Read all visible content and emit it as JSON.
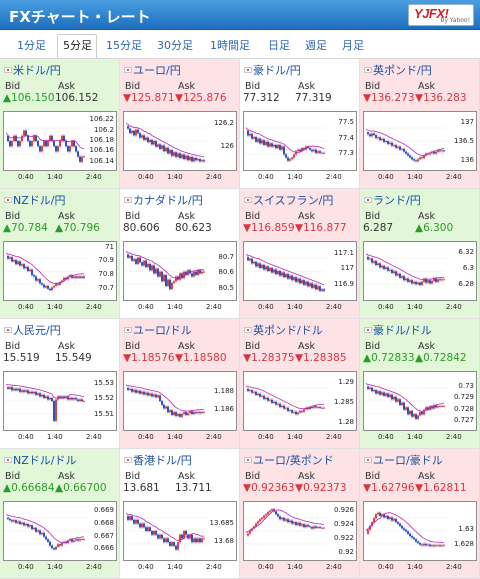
{
  "header": {
    "title": "FXチャート・レート",
    "logo_text": "YJFX!",
    "logo_sub": "by Yahoo!"
  },
  "tabs": [
    "1分足",
    "5分足",
    "15分足",
    "30分足",
    "1時間足",
    "日足",
    "週足",
    "月足"
  ],
  "selected_tab": "5分足",
  "labels": {
    "bid": "Bid",
    "ask": "Ask"
  },
  "x_ticks": [
    "0:40",
    "1:40",
    "2:40"
  ],
  "colors": {
    "up": "#2c9b2c",
    "down": "#d9363e",
    "link": "#1a4fa3",
    "ma": "#c020c0",
    "candle_up": "#d33030",
    "candle_down": "#1a3fb5"
  },
  "pairs": [
    {
      "name": "米ドル/円",
      "dir": "up",
      "bid": "▲106.150",
      "ask": "106.152",
      "y_ticks": [
        "106.22",
        "106.2",
        "106.18",
        "106.16",
        "106.14"
      ],
      "range": [
        106.13,
        106.23
      ],
      "series": [
        106.19,
        106.18,
        106.17,
        106.18,
        106.19,
        106.18,
        106.17,
        106.18,
        106.19,
        106.2,
        106.19,
        106.18,
        106.17,
        106.18,
        106.19,
        106.18,
        106.17,
        106.16,
        106.17,
        106.18,
        106.17,
        106.18,
        106.19,
        106.18,
        106.17,
        106.16,
        106.17,
        106.18,
        106.19,
        106.18,
        106.17,
        106.16,
        106.17,
        106.18,
        106.17,
        106.16,
        106.15,
        106.14,
        106.15,
        106.15
      ]
    },
    {
      "name": "ユーロ/円",
      "dir": "down",
      "bid": "▼125.871",
      "ask": "▼125.876",
      "y_ticks": [
        "126.2",
        "126"
      ],
      "range": [
        125.82,
        126.28
      ],
      "series": [
        126.18,
        126.16,
        126.12,
        126.14,
        126.1,
        126.15,
        126.12,
        126.08,
        126.1,
        126.06,
        126.08,
        126.04,
        126.06,
        126.02,
        126.05,
        126.0,
        126.02,
        125.98,
        126.01,
        125.96,
        125.99,
        125.94,
        125.97,
        125.92,
        125.95,
        125.91,
        125.94,
        125.9,
        125.93,
        125.89,
        125.92,
        125.88,
        125.91,
        125.87,
        125.9,
        125.88,
        125.89,
        125.87,
        125.88,
        125.87
      ]
    },
    {
      "name": "豪ドル/円",
      "dir": "neutral",
      "bid": "77.312",
      "ask": "77.319",
      "y_ticks": [
        "77.5",
        "77.4",
        "77.3"
      ],
      "range": [
        77.22,
        77.55
      ],
      "series": [
        77.45,
        77.42,
        77.43,
        77.4,
        77.41,
        77.38,
        77.4,
        77.37,
        77.39,
        77.36,
        77.38,
        77.35,
        77.37,
        77.35,
        77.36,
        77.34,
        77.36,
        77.33,
        77.35,
        77.3,
        77.28,
        77.26,
        77.27,
        77.28,
        77.3,
        77.32,
        77.33,
        77.32,
        77.34,
        77.33,
        77.35,
        77.34,
        77.33,
        77.32,
        77.33,
        77.31,
        77.32,
        77.31,
        77.31,
        77.31
      ]
    },
    {
      "name": "英ポンド/円",
      "dir": "down",
      "bid": "▼136.273",
      "ask": "▼136.283",
      "y_ticks": [
        "137",
        "136.5",
        "136"
      ],
      "range": [
        135.85,
        137.2
      ],
      "series": [
        136.75,
        136.7,
        136.65,
        136.72,
        136.68,
        136.6,
        136.62,
        136.55,
        136.58,
        136.5,
        136.52,
        136.45,
        136.48,
        136.4,
        136.42,
        136.35,
        136.38,
        136.3,
        136.32,
        136.25,
        136.2,
        136.15,
        136.1,
        136.05,
        136.02,
        136.0,
        136.05,
        136.1,
        136.08,
        136.15,
        136.2,
        136.18,
        136.22,
        136.25,
        136.2,
        136.24,
        136.28,
        136.26,
        136.28,
        136.27
      ]
    },
    {
      "name": "NZドル/円",
      "dir": "up",
      "bid": "▲70.784",
      "ask": "▲70.796",
      "y_ticks": [
        "71",
        "70.9",
        "70.8",
        "70.7"
      ],
      "range": [
        70.64,
        71.02
      ],
      "series": [
        70.94,
        70.92,
        70.93,
        70.9,
        70.91,
        70.88,
        70.9,
        70.87,
        70.88,
        70.85,
        70.86,
        70.83,
        70.84,
        70.8,
        70.79,
        70.76,
        70.77,
        70.74,
        70.73,
        70.71,
        70.72,
        70.7,
        70.69,
        70.71,
        70.72,
        70.74,
        70.73,
        70.75,
        70.76,
        70.78,
        70.77,
        70.79,
        70.8,
        70.78,
        70.79,
        70.78,
        70.79,
        70.78,
        70.79,
        70.78
      ]
    },
    {
      "name": "カナダドル/円",
      "dir": "neutral",
      "bid": "80.606",
      "ask": "80.623",
      "y_ticks": [
        "80.7",
        "80.6",
        "80.5"
      ],
      "range": [
        80.45,
        80.78
      ],
      "series": [
        80.72,
        80.7,
        80.71,
        80.68,
        80.69,
        80.66,
        80.7,
        80.67,
        80.65,
        80.68,
        80.64,
        80.66,
        80.62,
        80.65,
        80.6,
        80.63,
        80.58,
        80.61,
        80.55,
        80.59,
        80.52,
        80.56,
        80.5,
        80.54,
        80.55,
        80.58,
        80.56,
        80.6,
        80.57,
        80.61,
        80.59,
        80.62,
        80.6,
        80.58,
        80.61,
        80.59,
        80.62,
        80.6,
        80.61,
        80.61
      ]
    },
    {
      "name": "スイスフラン/円",
      "dir": "down",
      "bid": "▼116.859",
      "ask": "▼116.877",
      "y_ticks": [
        "117.1",
        "117",
        "116.9"
      ],
      "range": [
        116.82,
        117.16
      ],
      "series": [
        117.08,
        117.06,
        117.07,
        117.04,
        117.05,
        117.02,
        117.04,
        117.01,
        117.03,
        117.0,
        117.02,
        116.99,
        117.01,
        116.98,
        117.0,
        116.97,
        116.99,
        116.96,
        116.98,
        116.95,
        116.97,
        116.94,
        116.96,
        116.93,
        116.95,
        116.92,
        116.94,
        116.91,
        116.93,
        116.9,
        116.92,
        116.89,
        116.91,
        116.88,
        116.9,
        116.87,
        116.89,
        116.86,
        116.87,
        116.86
      ]
    },
    {
      "name": "ランド/円",
      "dir": "up",
      "bid": "6.287",
      "ask": "▲6.300",
      "y_ticks": [
        "6.32",
        "6.3",
        "6.28"
      ],
      "range": [
        6.265,
        6.33
      ],
      "series": [
        6.315,
        6.312,
        6.313,
        6.308,
        6.31,
        6.305,
        6.307,
        6.302,
        6.304,
        6.3,
        6.302,
        6.298,
        6.299,
        6.295,
        6.297,
        6.292,
        6.294,
        6.289,
        6.291,
        6.286,
        6.288,
        6.284,
        6.286,
        6.282,
        6.284,
        6.281,
        6.283,
        6.28,
        6.284,
        6.288,
        6.283,
        6.286,
        6.282,
        6.285,
        6.288,
        6.284,
        6.287,
        6.286,
        6.287,
        6.287
      ]
    },
    {
      "name": "人民元/円",
      "dir": "neutral",
      "bid": "15.519",
      "ask": "15.549",
      "y_ticks": [
        "15.53",
        "15.52",
        "15.51"
      ],
      "range": [
        15.502,
        15.536
      ],
      "series": [
        15.528,
        15.527,
        15.528,
        15.526,
        15.527,
        15.526,
        15.527,
        15.525,
        15.526,
        15.525,
        15.526,
        15.524,
        15.525,
        15.524,
        15.525,
        15.523,
        15.524,
        15.522,
        15.523,
        15.521,
        15.522,
        15.52,
        15.521,
        15.519,
        15.506,
        15.52,
        15.522,
        15.521,
        15.522,
        15.521,
        15.522,
        15.52,
        15.521,
        15.52,
        15.521,
        15.52,
        15.519,
        15.52,
        15.519,
        15.519
      ]
    },
    {
      "name": "ユーロ/ドル",
      "dir": "down",
      "bid": "▼1.18576",
      "ask": "▼1.18580",
      "y_ticks": [
        "1.188",
        "1.186"
      ],
      "range": [
        1.1842,
        1.1898
      ],
      "series": [
        1.1884,
        1.1882,
        1.1883,
        1.188,
        1.1882,
        1.1879,
        1.1881,
        1.1878,
        1.188,
        1.1877,
        1.1879,
        1.1876,
        1.1878,
        1.1875,
        1.1877,
        1.1874,
        1.1876,
        1.187,
        1.1866,
        1.1862,
        1.1864,
        1.1858,
        1.186,
        1.1855,
        1.1858,
        1.1854,
        1.1856,
        1.1853,
        1.1856,
        1.1858,
        1.1855,
        1.1857,
        1.1859,
        1.1856,
        1.1858,
        1.1857,
        1.1858,
        1.1857,
        1.1858,
        1.1858
      ]
    },
    {
      "name": "英ポンド/ドル",
      "dir": "down",
      "bid": "▼1.28375",
      "ask": "▼1.28385",
      "y_ticks": [
        "1.29",
        "1.285",
        "1.28"
      ],
      "range": [
        1.279,
        1.292
      ],
      "series": [
        1.2885,
        1.288,
        1.2882,
        1.2876,
        1.2878,
        1.287,
        1.2873,
        1.2866,
        1.2868,
        1.286,
        1.2863,
        1.2856,
        1.2858,
        1.285,
        1.2853,
        1.2846,
        1.2848,
        1.284,
        1.2843,
        1.2836,
        1.2838,
        1.283,
        1.2832,
        1.2826,
        1.2828,
        1.2822,
        1.2826,
        1.283,
        1.2828,
        1.2834,
        1.2838,
        1.2835,
        1.284,
        1.2838,
        1.2842,
        1.2839,
        1.284,
        1.2838,
        1.2838,
        1.2838
      ]
    },
    {
      "name": "豪ドル/ドル",
      "dir": "up",
      "bid": "▲0.72833",
      "ask": "▲0.72842",
      "y_ticks": [
        "0.73",
        "0.729",
        "0.728",
        "0.727"
      ],
      "range": [
        0.7265,
        0.731
      ],
      "series": [
        0.73,
        0.7298,
        0.7299,
        0.7296,
        0.7297,
        0.7294,
        0.7296,
        0.7293,
        0.7295,
        0.7292,
        0.7294,
        0.7291,
        0.7293,
        0.7289,
        0.7291,
        0.7287,
        0.7289,
        0.7284,
        0.7286,
        0.728,
        0.7282,
        0.7276,
        0.7279,
        0.7274,
        0.7276,
        0.7272,
        0.7275,
        0.7278,
        0.7276,
        0.728,
        0.7282,
        0.728,
        0.7283,
        0.7281,
        0.7284,
        0.7282,
        0.7283,
        0.7283,
        0.7283,
        0.7283
      ]
    },
    {
      "name": "NZドル/ドル",
      "dir": "up",
      "bid": "▲0.66684",
      "ask": "▲0.66700",
      "y_ticks": [
        "0.669",
        "0.668",
        "0.667",
        "0.666"
      ],
      "range": [
        0.6654,
        0.6695
      ],
      "series": [
        0.6685,
        0.6684,
        0.6683,
        0.6682,
        0.6683,
        0.6681,
        0.6682,
        0.668,
        0.6681,
        0.6679,
        0.668,
        0.6678,
        0.6679,
        0.6676,
        0.6677,
        0.6674,
        0.6675,
        0.6672,
        0.6673,
        0.667,
        0.6668,
        0.6666,
        0.6663,
        0.6661,
        0.666,
        0.6662,
        0.6664,
        0.6663,
        0.6665,
        0.6666,
        0.6665,
        0.6667,
        0.6668,
        0.6666,
        0.6667,
        0.6668,
        0.6667,
        0.6668,
        0.6668,
        0.6668
      ]
    },
    {
      "name": "香港ドル/円",
      "dir": "neutral",
      "bid": "13.681",
      "ask": "13.711",
      "y_ticks": [
        "13.685",
        "13.68"
      ],
      "range": [
        13.676,
        13.69
      ],
      "series": [
        13.687,
        13.686,
        13.687,
        13.686,
        13.685,
        13.686,
        13.685,
        13.684,
        13.685,
        13.684,
        13.683,
        13.684,
        13.683,
        13.682,
        13.683,
        13.682,
        13.681,
        13.682,
        13.681,
        13.68,
        13.681,
        13.68,
        13.679,
        13.68,
        13.679,
        13.678,
        13.68,
        13.682,
        13.681,
        13.683,
        13.682,
        13.681,
        13.682,
        13.68,
        13.681,
        13.68,
        13.681,
        13.68,
        13.681,
        13.681
      ]
    },
    {
      "name": "ユーロ/英ポンド",
      "dir": "down",
      "bid": "▼0.92363",
      "ask": "▼0.92373",
      "y_ticks": [
        "0.926",
        "0.924",
        "0.922",
        "0.92"
      ],
      "range": [
        0.9195,
        0.9268
      ],
      "series": [
        0.9225,
        0.9228,
        0.9232,
        0.9235,
        0.9238,
        0.9242,
        0.9245,
        0.9248,
        0.925,
        0.9253,
        0.9255,
        0.9258,
        0.926,
        0.9262,
        0.9259,
        0.9255,
        0.9252,
        0.9248,
        0.925,
        0.9246,
        0.9248,
        0.9244,
        0.9246,
        0.9242,
        0.9244,
        0.924,
        0.9243,
        0.9239,
        0.9241,
        0.9237,
        0.924,
        0.9238,
        0.9237,
        0.9235,
        0.9238,
        0.9236,
        0.9237,
        0.9236,
        0.9236,
        0.9236
      ]
    },
    {
      "name": "ユーロ/豪ドル",
      "dir": "down",
      "bid": "▼1.62796",
      "ask": "▼1.62811",
      "y_ticks": [
        "1.63",
        "1.628"
      ],
      "range": [
        1.6265,
        1.6332
      ],
      "series": [
        1.6295,
        1.63,
        1.6305,
        1.631,
        1.6315,
        1.632,
        1.6322,
        1.6318,
        1.632,
        1.6316,
        1.6318,
        1.6314,
        1.6316,
        1.6312,
        1.6314,
        1.631,
        1.6308,
        1.6305,
        1.6302,
        1.63,
        1.6298,
        1.6295,
        1.6292,
        1.629,
        1.6288,
        1.6285,
        1.6283,
        1.6281,
        1.628,
        1.6282,
        1.628,
        1.6281,
        1.6279,
        1.628,
        1.6279,
        1.628,
        1.628,
        1.6279,
        1.628,
        1.628
      ]
    }
  ]
}
